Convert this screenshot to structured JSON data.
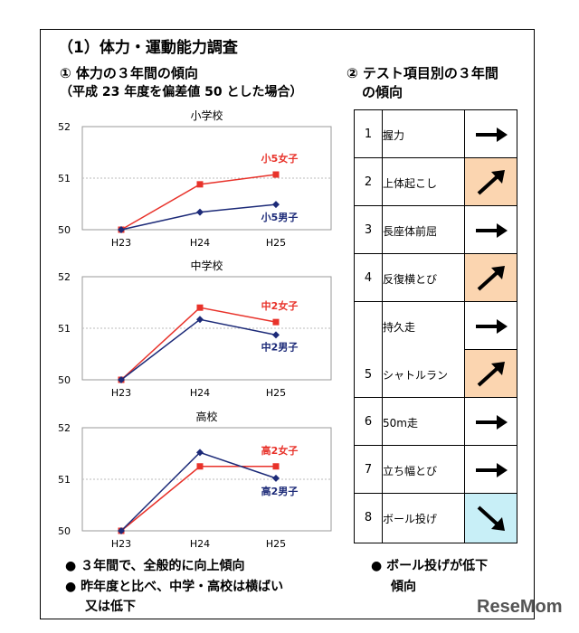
{
  "title": "（1）体力・運動能力調査",
  "section1": {
    "heading": "① 体力の３年間の傾向",
    "sub": "（平成 23 年度を偏差値 50 とした場合）"
  },
  "section2": {
    "heading": "② テスト項目別の３年間",
    "heading2": "の傾向"
  },
  "colors": {
    "girl": "#e8322a",
    "boy": "#1c2a78",
    "up_bg": "#fbd5b0",
    "down_bg": "#c8eff7"
  },
  "chart_data": [
    {
      "type": "line",
      "title": "小学校",
      "categories": [
        "H23",
        "H24",
        "H25"
      ],
      "ylim": [
        50,
        52
      ],
      "yticks": [
        "50",
        "51",
        "52"
      ],
      "series": [
        {
          "name": "小5女子",
          "values": [
            50.0,
            50.88,
            51.07
          ]
        },
        {
          "name": "小5男子",
          "values": [
            50.0,
            50.34,
            50.49
          ]
        }
      ]
    },
    {
      "type": "line",
      "title": "中学校",
      "categories": [
        "H23",
        "H24",
        "H25"
      ],
      "ylim": [
        50,
        52
      ],
      "yticks": [
        "50",
        "51",
        "52"
      ],
      "series": [
        {
          "name": "中2女子",
          "values": [
            50.0,
            51.4,
            51.12
          ]
        },
        {
          "name": "中2男子",
          "values": [
            50.0,
            51.17,
            50.87
          ]
        }
      ]
    },
    {
      "type": "line",
      "title": "高校",
      "categories": [
        "H23",
        "H24",
        "H25"
      ],
      "ylim": [
        50,
        52
      ],
      "yticks": [
        "50",
        "51",
        "52"
      ],
      "series": [
        {
          "name": "高2女子",
          "values": [
            50.0,
            51.25,
            51.25
          ]
        },
        {
          "name": "高2男子",
          "values": [
            50.0,
            51.52,
            51.02
          ]
        }
      ]
    }
  ],
  "table": [
    {
      "num": "1",
      "label": "握力",
      "trend": "flat"
    },
    {
      "num": "2",
      "label": "上体起こし",
      "trend": "up"
    },
    {
      "num": "3",
      "label": "長座体前屈",
      "trend": "flat"
    },
    {
      "num": "4",
      "label": "反復横とび",
      "trend": "up"
    },
    {
      "num": "5",
      "label": "持久走",
      "trend": "flat"
    },
    {
      "num": "",
      "label": "シャトルラン",
      "trend": "up"
    },
    {
      "num": "6",
      "label": "50m走",
      "trend": "flat"
    },
    {
      "num": "7",
      "label": "立ち幅とび",
      "trend": "flat"
    },
    {
      "num": "8",
      "label": "ボール投げ",
      "trend": "down"
    }
  ],
  "bullets_left": [
    "３年間で、全般的に向上傾向",
    "昨年度と比べ、中学・高校は横ばい",
    "又は低下"
  ],
  "bullets_right": [
    "ボール投げが低下",
    "傾向"
  ],
  "logo": "ReseMom"
}
